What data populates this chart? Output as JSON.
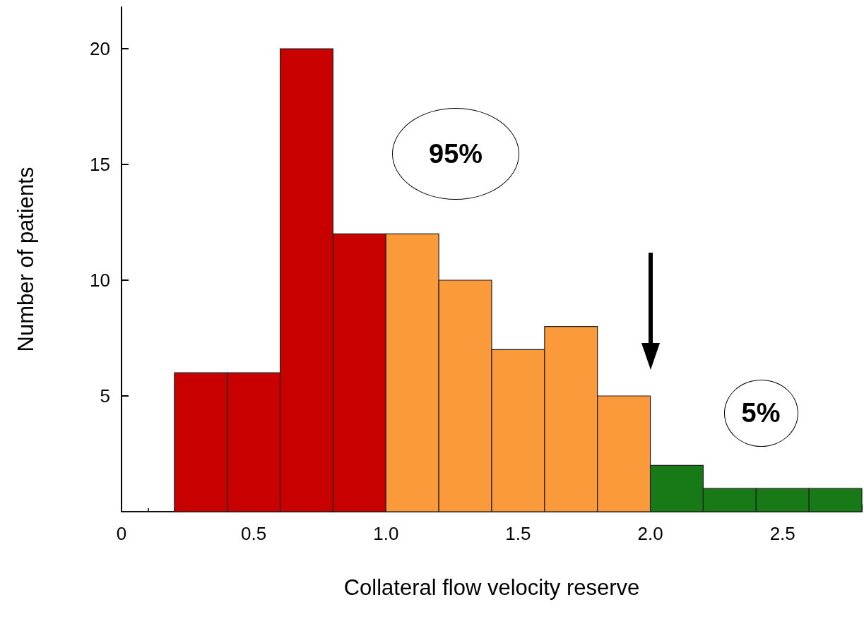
{
  "chart_data": {
    "type": "histogram",
    "xlabel": "Collateral flow velocity reserve",
    "ylabel": "Number of patients",
    "bins": [
      0,
      0.2,
      0.4,
      0.6,
      0.8,
      1.0,
      1.2,
      1.4,
      1.6,
      1.8,
      2.0,
      2.2,
      2.4,
      2.6,
      2.8
    ],
    "values": [
      0,
      6,
      6,
      20,
      12,
      12,
      10,
      7,
      8,
      5,
      2,
      1,
      1,
      1
    ],
    "colors": [
      "#222222",
      "#c80000",
      "#c80000",
      "#c80000",
      "#c80000",
      "#fb9a3a",
      "#fb9a3a",
      "#fb9a3a",
      "#fb9a3a",
      "#fb9a3a",
      "#177a17",
      "#177a17",
      "#177a17",
      "#177a17"
    ],
    "xlim": [
      0,
      2.8
    ],
    "xticks": [
      0,
      0.5,
      {
        "value": 1,
        "label": "1.0"
      },
      1.5,
      {
        "value": 2,
        "label": "2.0"
      },
      2.5
    ],
    "ylim": [
      0,
      21.8
    ],
    "yticks": [
      5,
      10,
      15,
      20
    ],
    "annotations": [
      "95%",
      "5%"
    ],
    "grid": false
  }
}
